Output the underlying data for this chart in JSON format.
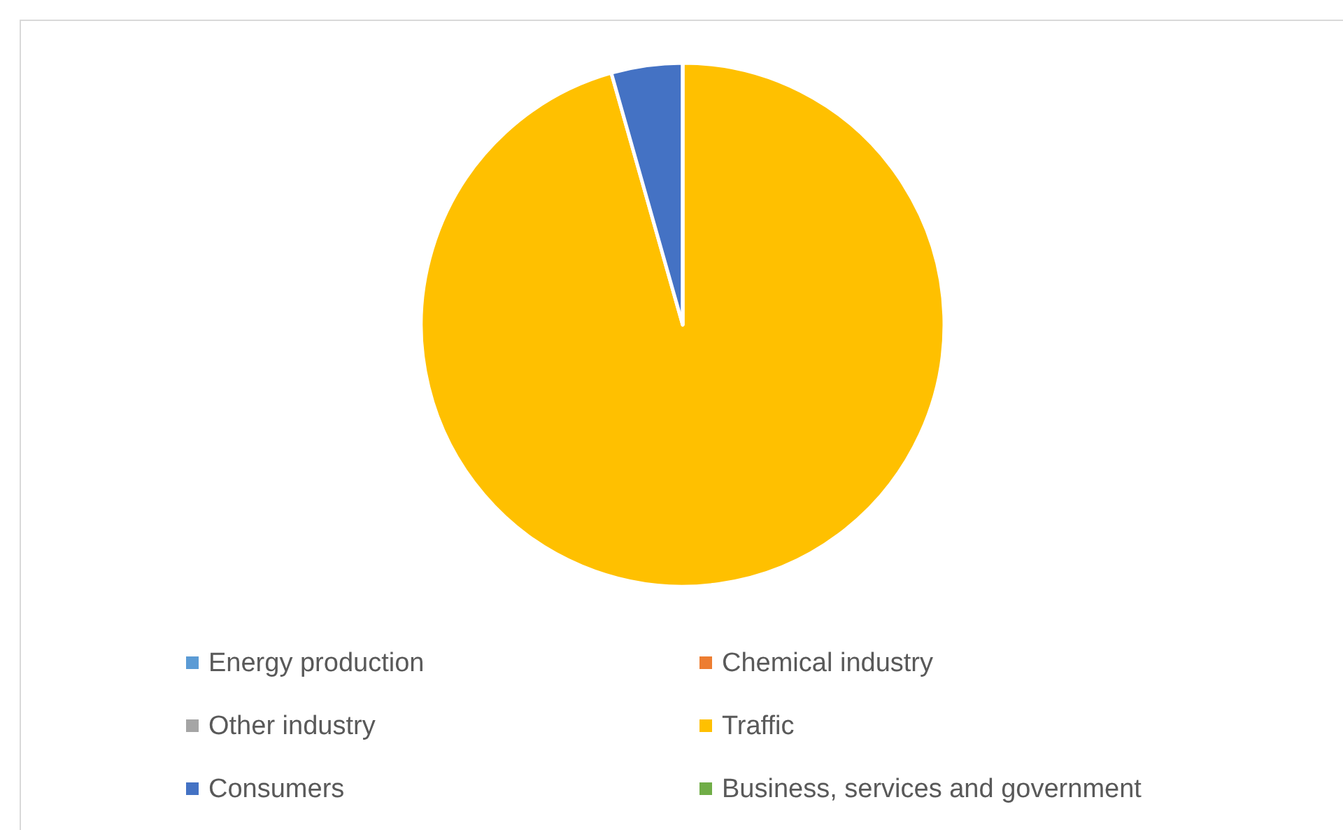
{
  "chart_data": {
    "type": "pie",
    "categories": [
      "Energy production",
      "Chemical industry",
      "Other industry",
      "Traffic",
      "Consumers",
      "Business, services and government"
    ],
    "values": [
      null,
      null,
      null,
      95.6,
      4.4,
      null
    ],
    "colors": [
      "#5b9bd5",
      "#ed7d31",
      "#a5a5a5",
      "#ffc000",
      "#4472c4",
      "#70ad47"
    ],
    "legend": "bottom"
  }
}
